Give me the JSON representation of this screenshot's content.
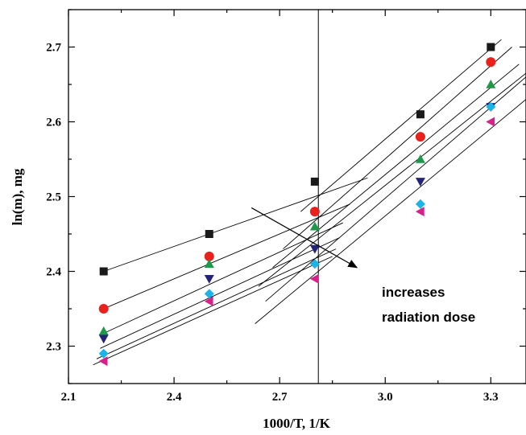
{
  "chart_data": {
    "type": "scatter",
    "title": "",
    "xlabel": "1000/T, 1/K",
    "ylabel": "ln(m), mg",
    "xlim": [
      2.1,
      3.4
    ],
    "ylim": [
      2.25,
      2.75
    ],
    "x_ticks": [
      "2.1",
      "2.4",
      "2.7",
      "3.0",
      "3.3"
    ],
    "y_ticks": [
      "2.3",
      "2.4",
      "2.5",
      "2.6",
      "2.7"
    ],
    "x_tick_values": [
      2.1,
      2.4,
      2.7,
      3.0,
      3.3
    ],
    "y_tick_values": [
      2.3,
      2.4,
      2.5,
      2.6,
      2.7
    ],
    "grid": false,
    "vertical_line_x": 2.81,
    "series": [
      {
        "marker": "square",
        "color": "#1a1a1a",
        "x": [
          2.2,
          2.5,
          2.8,
          3.1,
          3.3
        ],
        "y": [
          2.4,
          2.45,
          2.52,
          2.61,
          2.7
        ],
        "fit_low": [
          [
            2.2,
            2.4
          ],
          [
            2.95,
            2.525
          ]
        ],
        "fit_high": [
          [
            2.76,
            2.48
          ],
          [
            3.33,
            2.71
          ]
        ]
      },
      {
        "marker": "circle",
        "color": "#e8211d",
        "x": [
          2.2,
          2.5,
          2.8,
          3.1,
          3.3
        ],
        "y": [
          2.35,
          2.42,
          2.48,
          2.58,
          2.68
        ],
        "fit_low": [
          [
            2.2,
            2.35
          ],
          [
            2.9,
            2.49
          ]
        ],
        "fit_high": [
          [
            2.71,
            2.43
          ],
          [
            3.36,
            2.7
          ]
        ]
      },
      {
        "marker": "triangle-up",
        "color": "#1c9a48",
        "x": [
          2.2,
          2.5,
          2.8,
          3.1,
          3.3
        ],
        "y": [
          2.32,
          2.41,
          2.46,
          2.55,
          2.65
        ],
        "fit_low": [
          [
            2.19,
            2.315
          ],
          [
            2.88,
            2.465
          ]
        ],
        "fit_high": [
          [
            2.68,
            2.405
          ],
          [
            3.38,
            2.677
          ]
        ]
      },
      {
        "marker": "triangle-down",
        "color": "#23237a",
        "x": [
          2.2,
          2.5,
          2.8,
          3.1,
          3.3
        ],
        "y": [
          2.31,
          2.39,
          2.43,
          2.52,
          2.62
        ],
        "fit_low": [
          [
            2.19,
            2.297
          ],
          [
            2.87,
            2.445
          ]
        ],
        "fit_high": [
          [
            2.64,
            2.38
          ],
          [
            3.4,
            2.665
          ]
        ]
      },
      {
        "marker": "diamond",
        "color": "#1ab4e8",
        "x": [
          2.2,
          2.5,
          2.8,
          3.1,
          3.3
        ],
        "y": [
          2.29,
          2.37,
          2.41,
          2.49,
          2.62
        ],
        "fit_low": [
          [
            2.18,
            2.283
          ],
          [
            2.86,
            2.43
          ]
        ],
        "fit_high": [
          [
            2.66,
            2.36
          ],
          [
            3.4,
            2.66
          ]
        ]
      },
      {
        "marker": "triangle-left",
        "color": "#d81f8c",
        "x": [
          2.2,
          2.5,
          2.8,
          3.1,
          3.3
        ],
        "y": [
          2.28,
          2.36,
          2.39,
          2.48,
          2.6
        ],
        "fit_low": [
          [
            2.17,
            2.275
          ],
          [
            2.85,
            2.42
          ]
        ],
        "fit_high": [
          [
            2.63,
            2.33
          ],
          [
            3.4,
            2.63
          ]
        ]
      }
    ],
    "annotation": {
      "lines": [
        "increases",
        "radiation dose"
      ],
      "arrow_from": [
        2.62,
        2.485
      ],
      "arrow_to": [
        2.92,
        2.405
      ]
    }
  }
}
